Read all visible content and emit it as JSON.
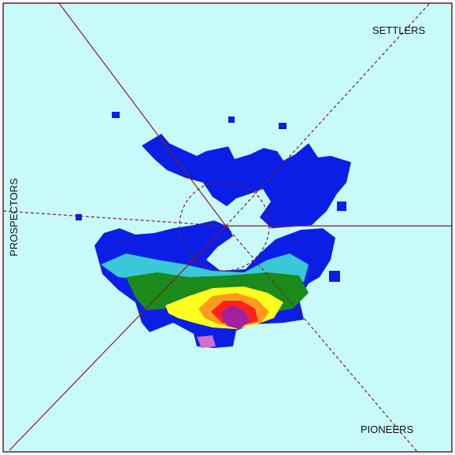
{
  "labels": {
    "top_right": "SETTLERS",
    "left": "PROSPECTORS",
    "bottom_right": "PIONEERS"
  }
}
